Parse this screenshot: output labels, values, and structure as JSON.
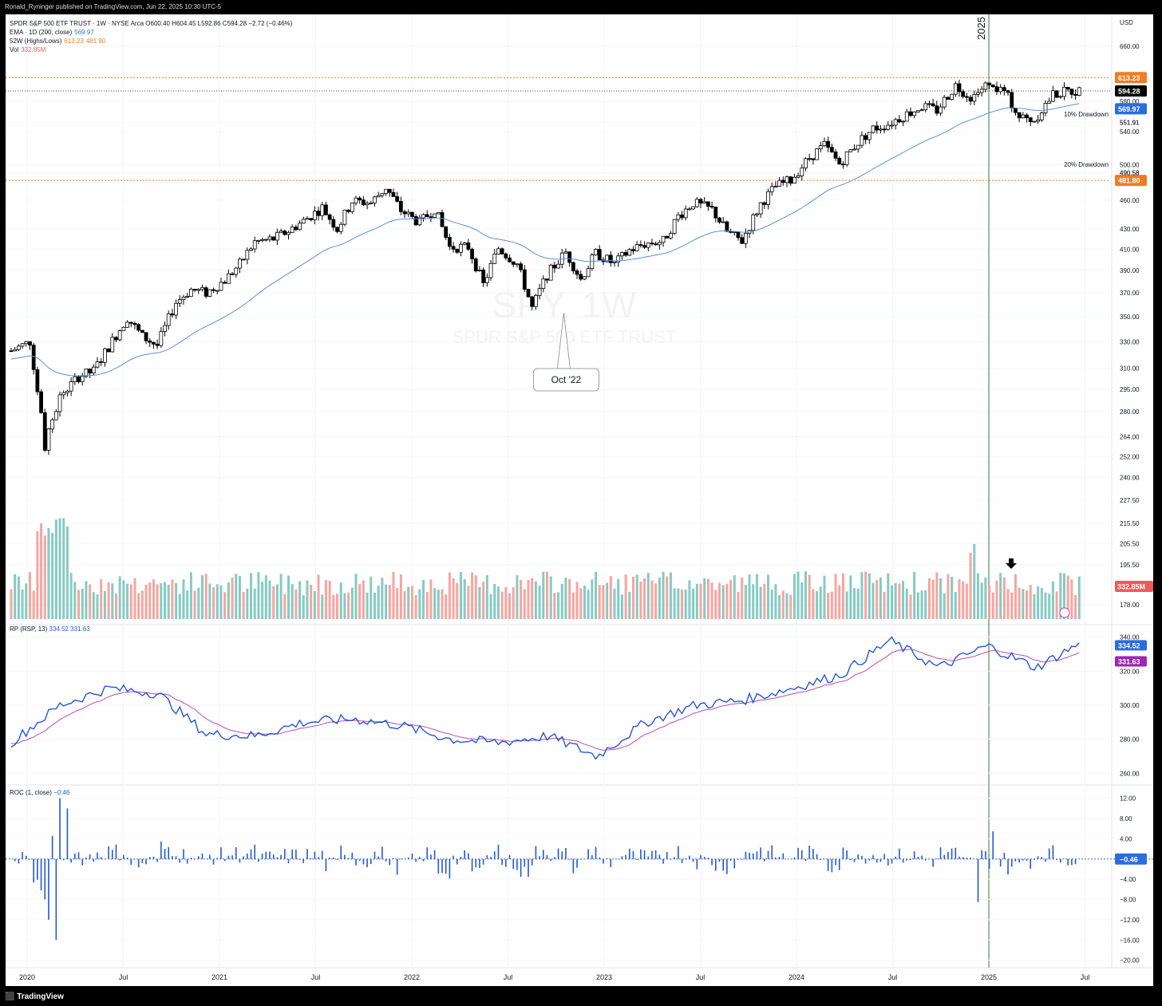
{
  "header": {
    "publisher": "Ronald_Ryninger published on TradingView.com, Jun 22, 2025 10:30 UTC-5"
  },
  "footer": {
    "brand": "TradingView"
  },
  "main_panel": {
    "title": "SPDR S&P 500 ETF TRUST · 1W · NYSE Arca",
    "ohlc": "O600.40 H604.45 L592.86 C594.28 −2.72 (−0.46%)",
    "ema_label": "EMA · 1D (200, close)",
    "ema_value": "569.97",
    "hl_label": "52W (Highs/Lows)",
    "hl_high": "613.23",
    "hl_low": "481.80",
    "vol_label": "Vol",
    "vol_value": "332.85M",
    "currency": "USD",
    "watermark_symbol": "SPY, 1W",
    "watermark_name": "SPDR S&P 500 ETF TRUST",
    "year_marker": "2025",
    "callout": "Oct '22",
    "dd10": "10% Drawdown",
    "dd20": "20% Drawdown",
    "price_ticks": [
      "660.00",
      "613.23",
      "594.28",
      "580.00",
      "569.97",
      "551.91",
      "540.00",
      "500.00",
      "490.58",
      "481.80",
      "460.00",
      "430.00",
      "410.00",
      "390.00",
      "370.00",
      "350.00",
      "330.00",
      "310.00",
      "295.00",
      "280.00",
      "264.00",
      "252.00",
      "240.00",
      "227.50",
      "215.50",
      "205.50",
      "195.50",
      "178.00",
      "332.85M"
    ]
  },
  "rp_panel": {
    "label": "RP (RSP, 13)",
    "v1": "334.52",
    "v2": "331.63",
    "ticks": [
      "340.00",
      "320.00",
      "300.00",
      "280.00",
      "260.00"
    ]
  },
  "roc_panel": {
    "label": "ROC (1, close)",
    "v1": "−0.46",
    "ticks": [
      "12.00",
      "8.00",
      "4.00",
      "−4.00",
      "−8.00",
      "−12.00",
      "−16.00",
      "−20.00"
    ],
    "last": "−0.46"
  },
  "x_axis": [
    "2020",
    "Jul",
    "2021",
    "Jul",
    "2022",
    "Jul",
    "2023",
    "Jul",
    "2024",
    "Jul",
    "2025",
    "Jul"
  ],
  "colors": {
    "up": "#ffffff",
    "down": "#000000",
    "vol_up": "#7fc7bf",
    "vol_down": "#f4a09b",
    "ema": "#5b8fd9",
    "rp": "#2357d6",
    "rp_ma": "#b84cb8",
    "roc": "#2357d6",
    "orange": "#f07c23",
    "black_label": "#000000",
    "blue_label": "#2b6ce0",
    "purple_label": "#9c27b0"
  },
  "chart_data": {
    "type": "candlestick",
    "timeframe": "1W",
    "price_series": {
      "name": "SPY",
      "x": [
        "2020-01",
        "2020-02",
        "2020-03",
        "2020-04",
        "2020-05",
        "2020-06",
        "2020-07",
        "2020-08",
        "2020-09",
        "2020-10",
        "2020-11",
        "2020-12",
        "2021-01",
        "2021-02",
        "2021-03",
        "2021-04",
        "2021-05",
        "2021-06",
        "2021-07",
        "2021-08",
        "2021-09",
        "2021-10",
        "2021-11",
        "2021-12",
        "2022-01",
        "2022-02",
        "2022-03",
        "2022-04",
        "2022-05",
        "2022-06",
        "2022-07",
        "2022-08",
        "2022-09",
        "2022-10",
        "2022-11",
        "2022-12",
        "2023-01",
        "2023-02",
        "2023-03",
        "2023-04",
        "2023-05",
        "2023-06",
        "2023-07",
        "2023-08",
        "2023-09",
        "2023-10",
        "2023-11",
        "2023-12",
        "2024-01",
        "2024-02",
        "2024-03",
        "2024-04",
        "2024-05",
        "2024-06",
        "2024-07",
        "2024-08",
        "2024-09",
        "2024-10",
        "2024-11",
        "2024-12",
        "2025-01",
        "2025-02",
        "2025-03",
        "2025-04",
        "2025-05",
        "2025-06"
      ],
      "close": [
        323,
        330,
        258,
        290,
        304,
        308,
        326,
        349,
        334,
        327,
        362,
        373,
        370,
        381,
        396,
        417,
        420,
        428,
        438,
        452,
        430,
        459,
        457,
        474,
        449,
        436,
        451,
        412,
        412,
        377,
        411,
        396,
        357,
        386,
        407,
        382,
        406,
        396,
        409,
        415,
        418,
        443,
        457,
        450,
        427,
        418,
        456,
        475,
        482,
        508,
        523,
        501,
        527,
        544,
        550,
        563,
        573,
        568,
        602,
        586,
        601,
        594,
        559,
        555,
        589,
        594
      ],
      "last": {
        "open": 600.4,
        "high": 604.45,
        "low": 592.86,
        "close": 594.28,
        "change": -2.72,
        "change_pct": -0.46
      }
    },
    "ema": {
      "name": "EMA (200, close)",
      "last": 569.97
    },
    "levels": {
      "52w_high": 613.23,
      "52w_low": 481.8,
      "drawdown_10": 551.91,
      "drawdown_20": 490.58
    },
    "volume": {
      "last": "332.85M"
    },
    "rp": {
      "x_years": [
        2020.0,
        2020.25,
        2020.5,
        2020.75,
        2021.0,
        2021.25,
        2021.5,
        2021.75,
        2022.0,
        2022.25,
        2022.5,
        2022.75,
        2023.0,
        2023.25,
        2023.5,
        2023.75,
        2024.0,
        2024.25,
        2024.5,
        2024.75,
        2025.0,
        2025.25,
        2025.45
      ],
      "values": [
        278,
        300,
        310,
        307,
        283,
        282,
        290,
        292,
        288,
        280,
        278,
        282,
        270,
        290,
        300,
        303,
        310,
        318,
        338,
        322,
        335,
        322,
        335
      ],
      "ma_last": 331.63,
      "last": 334.52
    },
    "roc": {
      "last": -0.46,
      "min": -16,
      "max": 12
    }
  }
}
